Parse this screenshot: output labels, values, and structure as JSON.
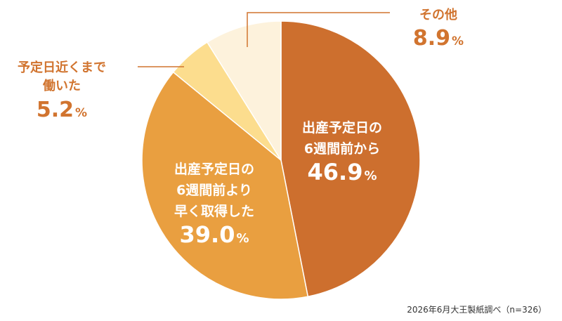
{
  "chart_data": {
    "type": "pie",
    "start_angle_deg": 0,
    "direction": "clockwise",
    "slices": [
      {
        "label_lines": [
          "出産予定日の",
          "6週間前から"
        ],
        "value": 46.9,
        "unit": "%",
        "color": "#CD6F2E",
        "label_color": "#ffffff"
      },
      {
        "label_lines": [
          "出産予定日の",
          "6週間前より",
          "早く取得した"
        ],
        "value": 39.0,
        "unit": "%",
        "color": "#E99F40",
        "label_color": "#ffffff"
      },
      {
        "label_lines": [
          "予定日近くまで",
          "働いた"
        ],
        "value": 5.2,
        "unit": "%",
        "color": "#FCDD8E",
        "label_color": "#D1742F"
      },
      {
        "label_lines": [
          "その他"
        ],
        "value": 8.9,
        "unit": "%",
        "color": "#FDF2DC",
        "label_color": "#D1742F"
      }
    ]
  },
  "source_note": "2026年6月大王製紙調べ（n=326）"
}
